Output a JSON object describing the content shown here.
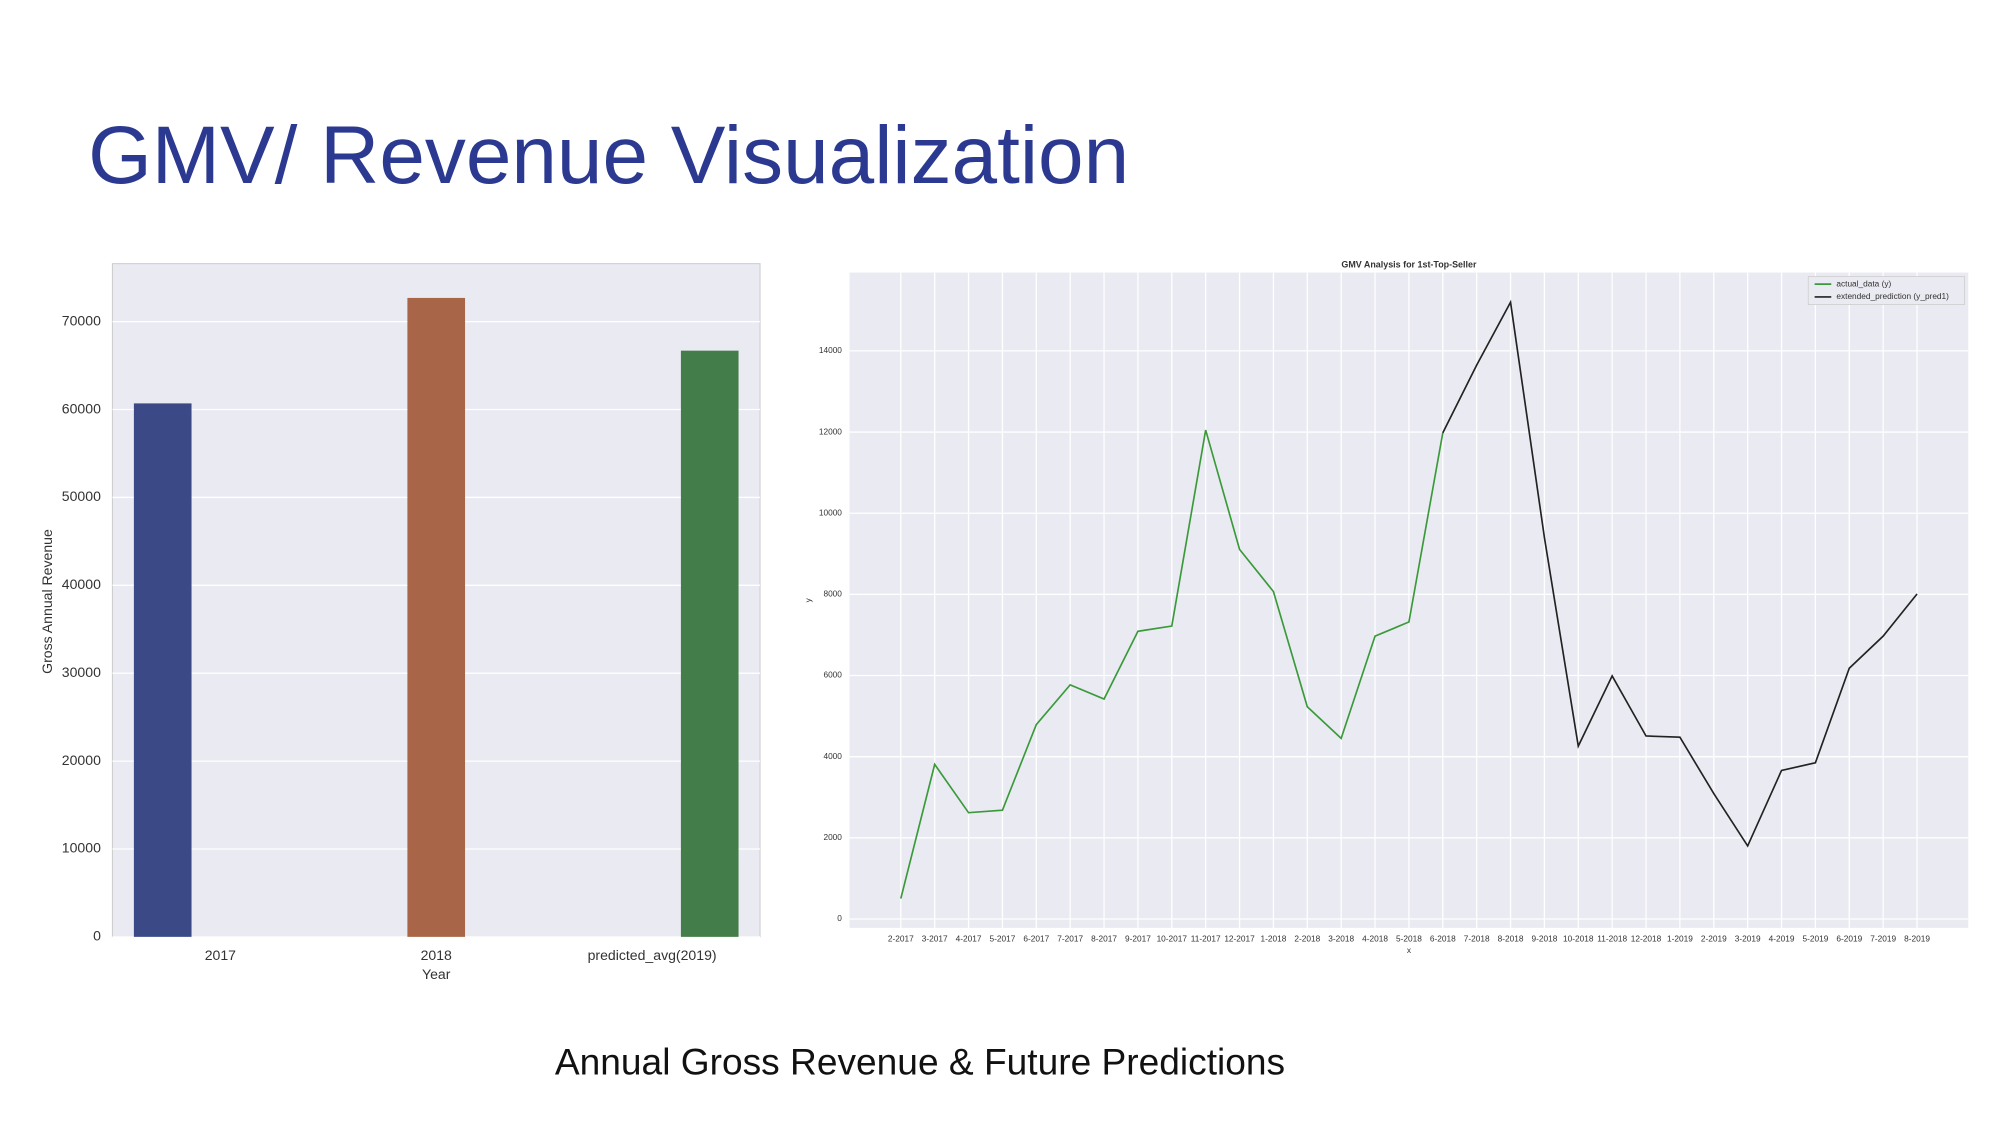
{
  "title": "GMV/ Revenue Visualization",
  "caption": "Annual Gross Revenue & Future Predictions",
  "chart_data": [
    {
      "type": "bar",
      "xlabel": "Year",
      "ylabel": "Gross Annual Revenue",
      "categories": [
        "2017",
        "2018",
        "predicted_avg(2019)"
      ],
      "values": [
        60700,
        72700,
        66700
      ],
      "colors": [
        "#3b4a87",
        "#a86547",
        "#437d4a"
      ],
      "ylim": [
        0,
        76600
      ],
      "yticks": [
        0,
        10000,
        20000,
        30000,
        40000,
        50000,
        60000,
        70000
      ],
      "grid": true
    },
    {
      "type": "line",
      "title": "GMV Analysis for 1st-Top-Seller",
      "xlabel": "x",
      "ylabel": "y",
      "categories": [
        "2-2017",
        "3-2017",
        "4-2017",
        "5-2017",
        "6-2017",
        "7-2017",
        "8-2017",
        "9-2017",
        "10-2017",
        "11-2017",
        "12-2017",
        "1-2018",
        "2-2018",
        "3-2018",
        "4-2018",
        "5-2018",
        "6-2018",
        "7-2018",
        "8-2018",
        "9-2018",
        "10-2018",
        "11-2018",
        "12-2018",
        "1-2019",
        "2-2019",
        "3-2019",
        "4-2019",
        "5-2019",
        "6-2019",
        "7-2019",
        "8-2019"
      ],
      "series": [
        {
          "name": "actual_data (y)",
          "color": "#3a9a3a",
          "values": [
            504,
            3810,
            2620,
            2680,
            4790,
            5770,
            5420,
            7090,
            7220,
            12050,
            9110,
            8070,
            5230,
            4450,
            6970,
            7320,
            11980,
            null,
            null,
            null,
            null,
            null,
            null,
            null,
            null,
            null,
            null,
            null,
            null,
            null,
            null
          ]
        },
        {
          "name": "extended_prediction (y_pred1)",
          "color": "#222222",
          "values": [
            null,
            null,
            null,
            null,
            null,
            null,
            null,
            null,
            null,
            null,
            null,
            null,
            null,
            null,
            null,
            null,
            11980,
            13650,
            15200,
            9400,
            4260,
            5990,
            4510,
            4480,
            3090,
            1800,
            3660,
            3850,
            6180,
            6970,
            8010
          ]
        }
      ],
      "ylim": [
        -220,
        15930
      ],
      "yticks": [
        0,
        2000,
        4000,
        6000,
        8000,
        10000,
        12000,
        14000
      ],
      "grid": true,
      "legend": "upper right"
    }
  ]
}
